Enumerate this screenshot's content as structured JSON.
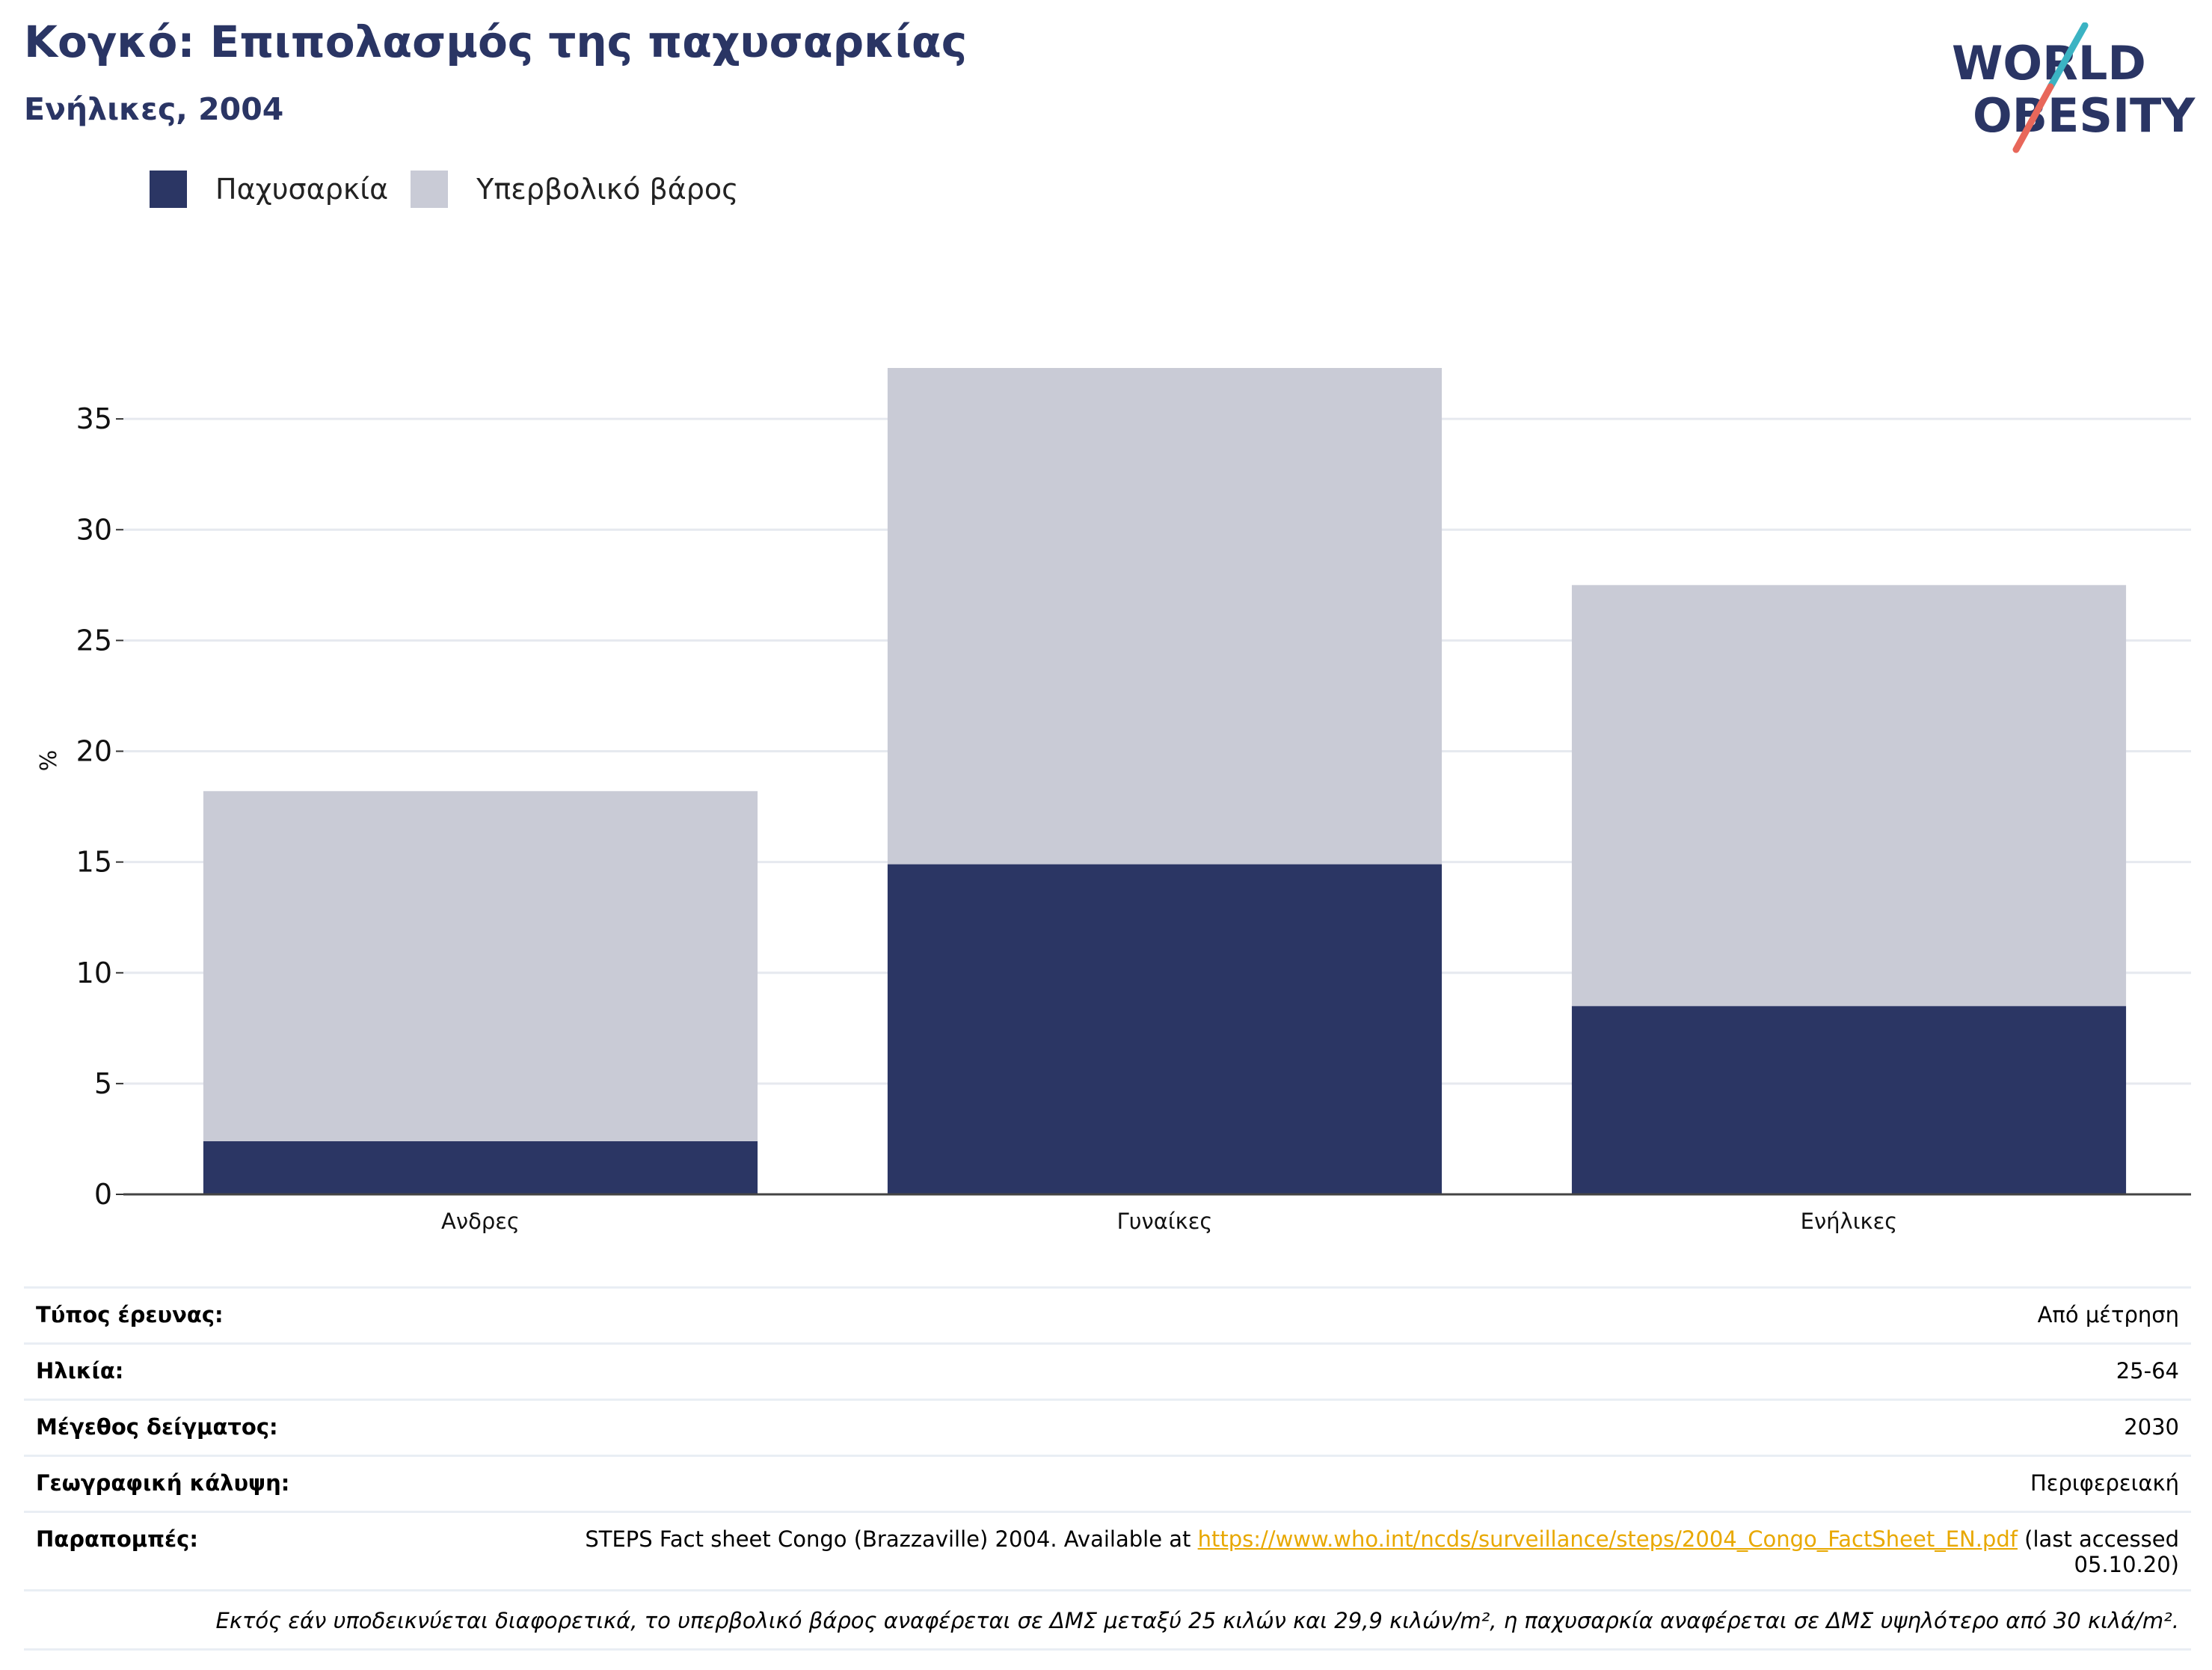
{
  "header": {
    "title": "Κογκό: Επιπολασμός της παχυσαρκίας",
    "subtitle": "Ενήλικες, 2004"
  },
  "logo": {
    "line1": "WORLD",
    "line2": "OBESITY",
    "colors": {
      "text": "#2a3564",
      "slash_top": "#3bb3c3",
      "slash_bottom": "#e8675a"
    }
  },
  "legend": [
    {
      "label": "Παχυσαρκία",
      "color": "#2b3664"
    },
    {
      "label": "Υπερβολικό βάρος",
      "color": "#c9cbd6"
    }
  ],
  "chart_data": {
    "type": "bar",
    "stacked": true,
    "categories": [
      "Ανδρες",
      "Γυναίκες",
      "Ενήλικες"
    ],
    "series": [
      {
        "name": "Παχυσαρκία",
        "values": [
          2.4,
          14.9,
          8.5
        ],
        "color": "#2b3664"
      },
      {
        "name": "Υπερβολικό βάρος",
        "values": [
          15.8,
          22.4,
          19.0
        ],
        "color": "#c9cbd6"
      }
    ],
    "ylabel": "%",
    "ylim": [
      0,
      37.3
    ],
    "yticks": [
      0,
      5,
      10,
      15,
      20,
      25,
      30,
      35
    ],
    "grid": true,
    "legend_position": "top-left"
  },
  "details": {
    "survey_type": {
      "label": "Τύπος έρευνας:",
      "value": "Από μέτρηση"
    },
    "age": {
      "label": "Ηλικία:",
      "value": "25-64"
    },
    "sample_size": {
      "label": "Μέγεθος δείγματος:",
      "value": "2030"
    },
    "coverage": {
      "label": "Γεωγραφική κάλυψη:",
      "value": "Περιφερειακή"
    },
    "references": {
      "label": "Παραπομπές:",
      "text_before": "STEPS Fact sheet Congo (Brazzaville) 2004. Available at ",
      "link": "https://www.who.int/ncds/surveillance/steps/2004_Congo_FactSheet_EN.pdf",
      "text_after": " (last accessed 05.10.20)"
    },
    "note": "Εκτός εάν υποδεικνύεται διαφορετικά, το υπερβολικό βάρος αναφέρεται σε ΔΜΣ μεταξύ 25 κιλών και 29,9 κιλών/m², η παχυσαρκία αναφέρεται σε ΔΜΣ υψηλότερο από 30 κιλά/m²."
  }
}
